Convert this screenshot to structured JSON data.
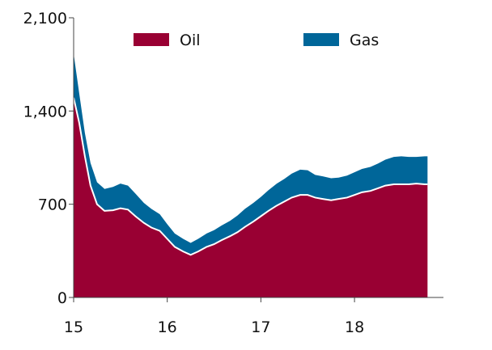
{
  "chart_data": {
    "type": "area",
    "stacked": true,
    "title": "",
    "xlabel": "",
    "ylabel": "",
    "xlim": [
      15,
      18.95
    ],
    "ylim": [
      0,
      2100
    ],
    "x_ticks": [
      15,
      16,
      17,
      18
    ],
    "x_tick_labels": [
      "15",
      "16",
      "17",
      "18"
    ],
    "y_ticks": [
      0,
      700,
      1400,
      2100
    ],
    "y_tick_labels": [
      "0",
      "700",
      "1,400",
      "2,100"
    ],
    "grid": false,
    "legend_position": "top",
    "x": [
      15.0,
      15.06,
      15.12,
      15.18,
      15.25,
      15.33,
      15.42,
      15.5,
      15.58,
      15.66,
      15.75,
      15.83,
      15.92,
      16.0,
      16.08,
      16.17,
      16.25,
      16.33,
      16.42,
      16.5,
      16.58,
      16.67,
      16.75,
      16.83,
      16.92,
      17.0,
      17.08,
      17.17,
      17.25,
      17.33,
      17.42,
      17.5,
      17.58,
      17.66,
      17.75,
      17.83,
      17.92,
      18.0,
      18.08,
      18.17,
      18.25,
      18.33,
      18.42,
      18.5,
      18.58,
      18.66,
      18.75,
      18.78
    ],
    "series": [
      {
        "name": "Oil",
        "color": "#990033",
        "values": [
          1500,
          1310,
          1060,
          840,
          700,
          650,
          655,
          670,
          660,
          610,
          560,
          525,
          500,
          440,
          380,
          345,
          320,
          345,
          380,
          400,
          430,
          460,
          490,
          530,
          570,
          610,
          650,
          690,
          720,
          750,
          770,
          770,
          750,
          740,
          730,
          740,
          750,
          770,
          790,
          800,
          820,
          840,
          850,
          850,
          850,
          855,
          850,
          850
        ]
      },
      {
        "name": "Gas",
        "color": "#006699",
        "values": [
          330,
          220,
          175,
          170,
          165,
          165,
          175,
          185,
          180,
          170,
          150,
          140,
          125,
          110,
          100,
          95,
          90,
          95,
          100,
          105,
          110,
          115,
          125,
          135,
          140,
          145,
          155,
          165,
          170,
          180,
          190,
          185,
          170,
          170,
          165,
          160,
          165,
          170,
          175,
          180,
          185,
          195,
          205,
          210,
          205,
          200,
          210,
          210
        ]
      }
    ]
  }
}
